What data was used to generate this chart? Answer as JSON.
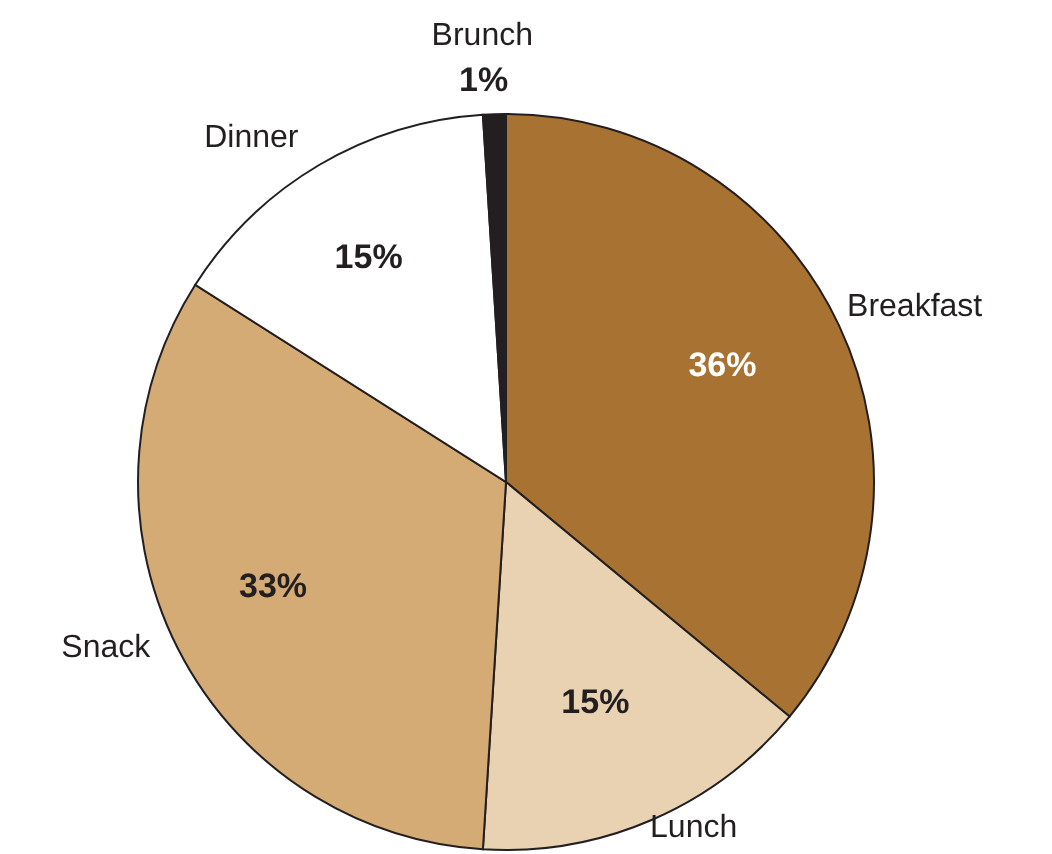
{
  "chart_data": {
    "type": "pie",
    "categories": [
      "Breakfast",
      "Lunch",
      "Snack",
      "Dinner",
      "Brunch"
    ],
    "values": [
      36,
      15,
      33,
      15,
      1
    ],
    "colors": [
      "#a87232",
      "#e8d2b2",
      "#d4ab74",
      "#ffffff",
      "#231f20"
    ],
    "value_labels": [
      "36%",
      "15%",
      "33%",
      "15%",
      "1%"
    ],
    "legend": false
  }
}
